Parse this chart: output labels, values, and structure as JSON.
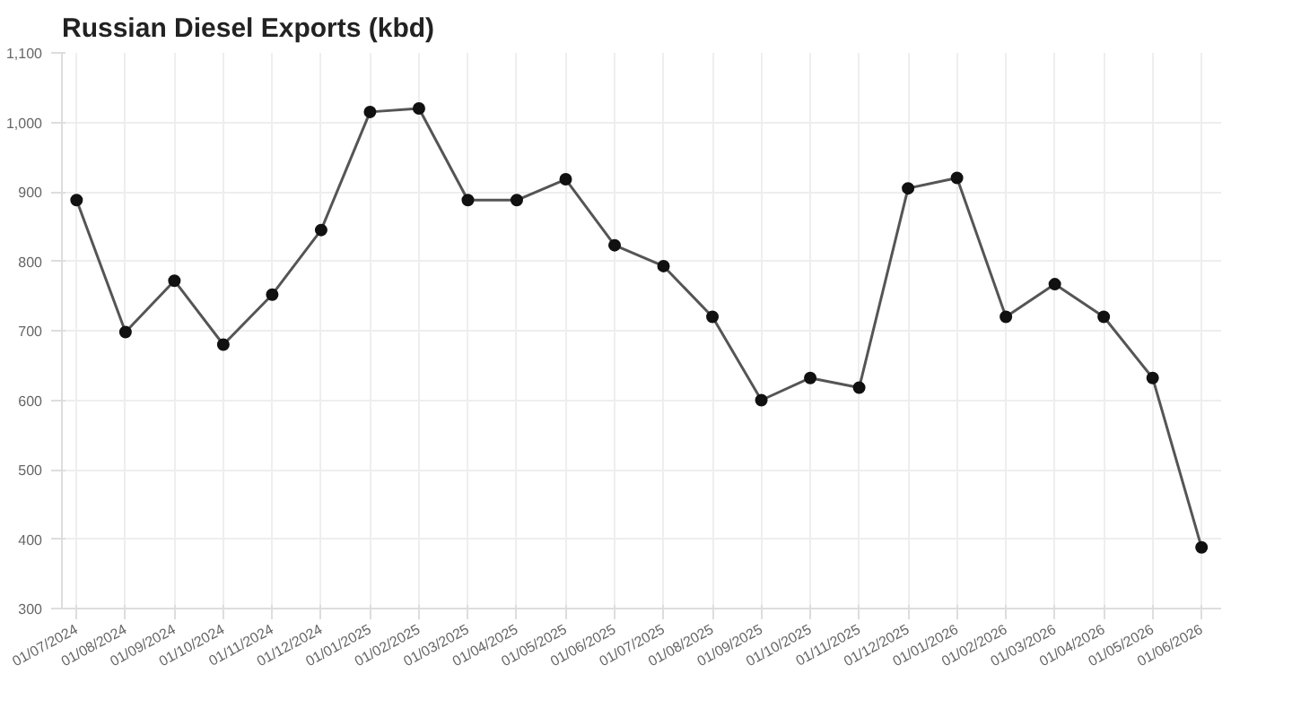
{
  "chart_data": {
    "type": "line",
    "title": "Russian Diesel Exports (kbd)",
    "categories": [
      "01/07/2024",
      "01/08/2024",
      "01/09/2024",
      "01/10/2024",
      "01/11/2024",
      "01/12/2024",
      "01/01/2025",
      "01/02/2025",
      "01/03/2025",
      "01/04/2025",
      "01/05/2025",
      "01/06/2025",
      "01/07/2025",
      "01/08/2025",
      "01/09/2025",
      "01/10/2025",
      "01/11/2025",
      "01/12/2025",
      "01/01/2026",
      "01/02/2026",
      "01/03/2026",
      "01/04/2026",
      "01/05/2026",
      "01/06/2026"
    ],
    "series": [
      {
        "color": "#555555",
        "values": [
          888,
          698,
          772,
          680,
          752,
          845,
          1015,
          1020,
          888,
          888,
          918,
          823,
          793,
          720,
          600,
          632,
          618,
          905,
          920,
          720,
          767,
          720,
          632,
          388
        ]
      }
    ],
    "ylim": [
      300,
      1100
    ],
    "yticks": [
      300,
      400,
      500,
      600,
      700,
      800,
      900,
      {
        "value": 1000,
        "label": "1,000"
      },
      {
        "value": 1100,
        "label": "1,100"
      }
    ],
    "grid": true,
    "marker": "circle",
    "line_style": "solid"
  }
}
